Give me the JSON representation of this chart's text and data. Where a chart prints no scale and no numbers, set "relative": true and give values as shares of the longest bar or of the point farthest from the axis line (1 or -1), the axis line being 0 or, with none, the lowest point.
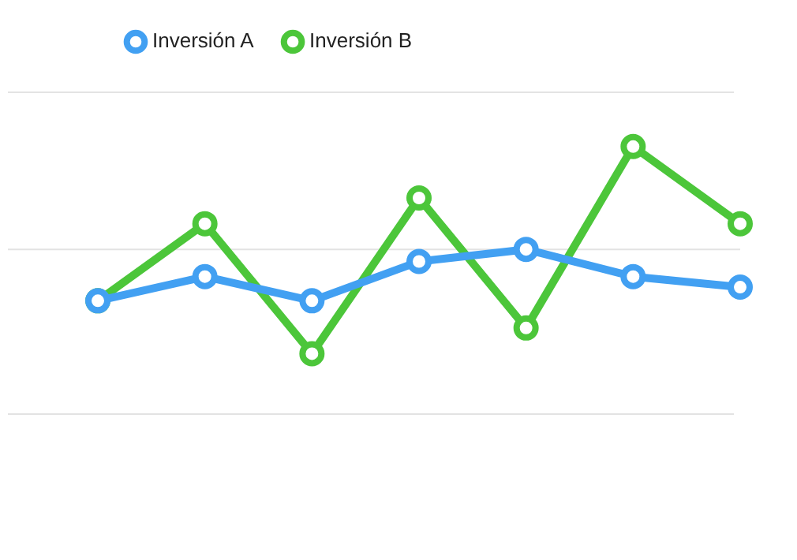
{
  "chart_data": {
    "type": "line",
    "relative": true,
    "categories": [
      null,
      null,
      null,
      null,
      null,
      null,
      null
    ],
    "series": [
      {
        "name": "Inversión A",
        "color": "#42a0f2",
        "values": [
          -0.493,
          -0.261,
          -0.493,
          -0.116,
          0,
          -0.261,
          -0.362
        ]
      },
      {
        "name": "Inversión B",
        "color": "#4cc63a",
        "values": [
          -0.493,
          0.246,
          -1,
          0.493,
          -0.754,
          0.986,
          0.246
        ]
      }
    ],
    "marker": "circle",
    "line_style": "solid",
    "legend": "top"
  }
}
